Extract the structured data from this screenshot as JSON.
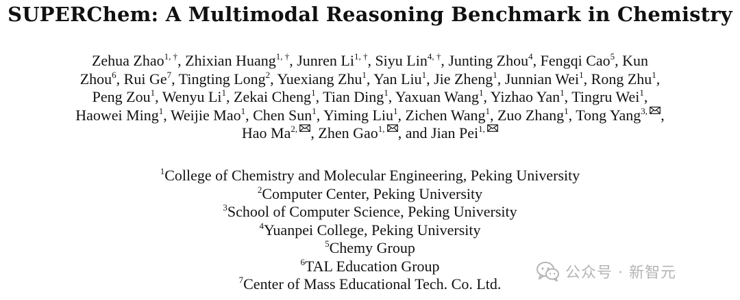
{
  "title": "SUPERChem: A Multimodal Reasoning Benchmark in Chemistry",
  "author_lines": [
    [
      {
        "name": "Zehua Zhao",
        "sup": "1, †",
        "sep": ", "
      },
      {
        "name": "Zhixian Huang",
        "sup": "1, †",
        "sep": ", "
      },
      {
        "name": "Junren Li",
        "sup": "1, †",
        "sep": ", "
      },
      {
        "name": "Siyu Lin",
        "sup": "4, †",
        "sep": ", "
      },
      {
        "name": "Junting Zhou",
        "sup": "4",
        "sep": ", "
      },
      {
        "name": "Fengqi Cao",
        "sup": "5",
        "sep": ", "
      },
      {
        "name": "Kun",
        "sup": "",
        "sep": ""
      }
    ],
    [
      {
        "name": "Zhou",
        "sup": "6",
        "sep": ", "
      },
      {
        "name": "Rui Ge",
        "sup": "7",
        "sep": ", "
      },
      {
        "name": "Tingting Long",
        "sup": "2",
        "sep": ", "
      },
      {
        "name": "Yuexiang Zhu",
        "sup": "1",
        "sep": ", "
      },
      {
        "name": "Yan Liu",
        "sup": "1",
        "sep": ", "
      },
      {
        "name": "Jie Zheng",
        "sup": "1",
        "sep": ", "
      },
      {
        "name": "Junnian Wei",
        "sup": "1",
        "sep": ", "
      },
      {
        "name": "Rong Zhu",
        "sup": "1",
        "sep": ","
      }
    ],
    [
      {
        "name": "Peng Zou",
        "sup": "1",
        "sep": ", "
      },
      {
        "name": "Wenyu Li",
        "sup": "1",
        "sep": ", "
      },
      {
        "name": "Zekai Cheng",
        "sup": "1",
        "sep": ", "
      },
      {
        "name": "Tian Ding",
        "sup": "1",
        "sep": ", "
      },
      {
        "name": "Yaxuan Wang",
        "sup": "1",
        "sep": ", "
      },
      {
        "name": "Yizhao Yan",
        "sup": "1",
        "sep": ", "
      },
      {
        "name": "Tingru Wei",
        "sup": "1",
        "sep": ","
      }
    ],
    [
      {
        "name": "Haowei Ming",
        "sup": "1",
        "sep": ", "
      },
      {
        "name": "Weijie Mao",
        "sup": "1",
        "sep": ", "
      },
      {
        "name": "Chen Sun",
        "sup": "1",
        "sep": ", "
      },
      {
        "name": "Yiming Liu",
        "sup": "1",
        "sep": ", "
      },
      {
        "name": "Zichen Wang",
        "sup": "1",
        "sep": ", "
      },
      {
        "name": "Zuo Zhang",
        "sup": "1",
        "sep": ", "
      },
      {
        "name": "Tong Yang",
        "sup": "3, ",
        "mail": true,
        "sep": ","
      }
    ],
    [
      {
        "name": "Hao Ma",
        "sup": "2, ",
        "mail": true,
        "sep": ", "
      },
      {
        "name": "Zhen Gao",
        "sup": "1, ",
        "mail": true,
        "sep": ", and "
      },
      {
        "name": "Jian Pei",
        "sup": "1, ",
        "mail": true,
        "sep": ""
      }
    ]
  ],
  "affiliations": [
    {
      "num": "1",
      "text": "College of Chemistry and Molecular Engineering, Peking University"
    },
    {
      "num": "2",
      "text": "Computer Center, Peking University"
    },
    {
      "num": "3",
      "text": "School of Computer Science, Peking University"
    },
    {
      "num": "4",
      "text": "Yuanpei College, Peking University"
    },
    {
      "num": "5",
      "text": "Chemy Group"
    },
    {
      "num": "6",
      "text": "TAL Education Group"
    },
    {
      "num": "7",
      "text": "Center of Mass Educational Tech. Co. Ltd."
    }
  ],
  "watermark": {
    "icon": "wechat-icon",
    "text": "公众号 · 新智元"
  }
}
